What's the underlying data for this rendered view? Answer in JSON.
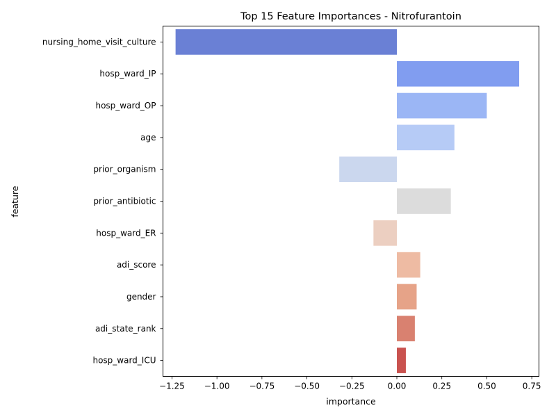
{
  "chart_data": {
    "type": "bar",
    "orientation": "horizontal",
    "title": "Top 15 Feature Importances - Nitrofurantoin",
    "xlabel": "importance",
    "ylabel": "feature",
    "xlim": [
      -1.3,
      0.79
    ],
    "grid": false,
    "legend": "none",
    "xticks": [
      -1.25,
      -1.0,
      -0.75,
      -0.5,
      -0.25,
      0.0,
      0.25,
      0.5,
      0.75
    ],
    "xtick_labels": [
      "−1.25",
      "−1.00",
      "−0.75",
      "−0.50",
      "−0.25",
      "0.00",
      "0.25",
      "0.50",
      "0.75"
    ],
    "categories": [
      "nursing_home_visit_culture",
      "hosp_ward_IP",
      "hosp_ward_OP",
      "age",
      "prior_organism",
      "prior_antibiotic",
      "hosp_ward_ER",
      "adi_score",
      "gender",
      "adi_state_rank",
      "hosp_ward_ICU"
    ],
    "values": [
      -1.23,
      0.68,
      0.5,
      0.32,
      -0.32,
      0.3,
      -0.13,
      0.13,
      0.11,
      0.1,
      0.05
    ],
    "colors": [
      "#6a80d5",
      "#819df0",
      "#9bb6f5",
      "#b6cbf6",
      "#cbd7ee",
      "#dcdcdc",
      "#eccfc1",
      "#eebba3",
      "#e6a388",
      "#d98170",
      "#c9524f"
    ]
  }
}
